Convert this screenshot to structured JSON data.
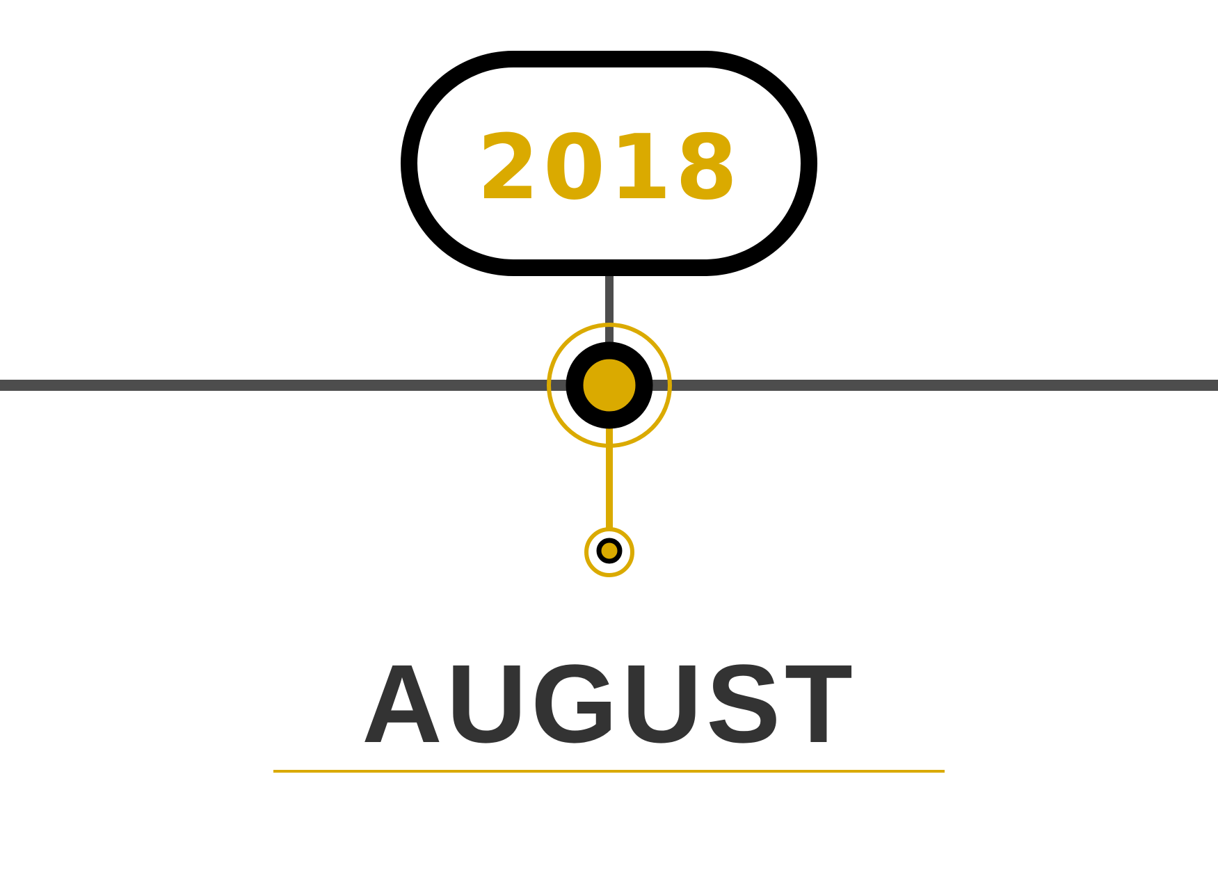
{
  "timeline": {
    "year": "2018",
    "month": "AUGUST"
  },
  "colors": {
    "accent": "#DAAA00",
    "outline": "#000000",
    "axis": "#4D4D4D",
    "month_text": "#333333",
    "background": "#FFFFFF"
  }
}
